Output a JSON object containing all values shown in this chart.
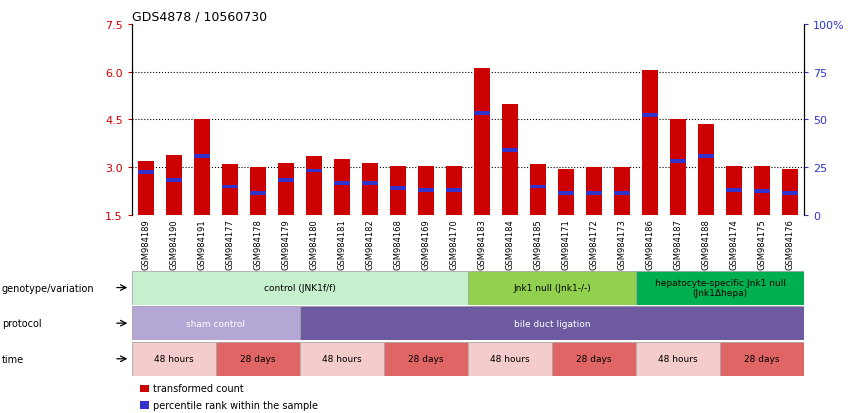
{
  "title": "GDS4878 / 10560730",
  "samples": [
    "GSM984189",
    "GSM984190",
    "GSM984191",
    "GSM984177",
    "GSM984178",
    "GSM984179",
    "GSM984180",
    "GSM984181",
    "GSM984182",
    "GSM984168",
    "GSM984169",
    "GSM984170",
    "GSM984183",
    "GSM984184",
    "GSM984185",
    "GSM984171",
    "GSM984172",
    "GSM984173",
    "GSM984186",
    "GSM984187",
    "GSM984188",
    "GSM984174",
    "GSM984175",
    "GSM984176"
  ],
  "transformed_counts": [
    3.2,
    3.4,
    4.5,
    3.1,
    3.0,
    3.15,
    3.35,
    3.25,
    3.15,
    3.05,
    3.05,
    3.05,
    6.1,
    5.0,
    3.1,
    2.95,
    3.0,
    3.0,
    6.05,
    4.5,
    4.35,
    3.05,
    3.05,
    2.95
  ],
  "percentile_ranks": [
    2.85,
    2.6,
    3.35,
    2.4,
    2.2,
    2.6,
    2.9,
    2.5,
    2.5,
    2.35,
    2.3,
    2.3,
    4.7,
    3.55,
    2.4,
    2.2,
    2.2,
    2.2,
    4.65,
    3.2,
    3.35,
    2.3,
    2.25,
    2.2
  ],
  "bar_color": "#cc0000",
  "percentile_color": "#3333cc",
  "ymin": 1.5,
  "ymax": 7.5,
  "yticks": [
    1.5,
    3.0,
    4.5,
    6.0,
    7.5
  ],
  "right_yticks": [
    0,
    25,
    50,
    75,
    100
  ],
  "right_ytick_labels": [
    "0",
    "25",
    "50",
    "75",
    "100%"
  ],
  "grid_lines": [
    3.0,
    4.5,
    6.0
  ],
  "genotype_groups": [
    {
      "label": "control (JNK1f/f)",
      "start": 0,
      "end": 12,
      "color": "#c6efce",
      "border": "#999999"
    },
    {
      "label": "Jnk1 null (Jnk1-/-)",
      "start": 12,
      "end": 18,
      "color": "#92d050",
      "border": "#999999"
    },
    {
      "label": "hepatocyte-specific Jnk1 null\n(Jnk1Δhepa)",
      "start": 18,
      "end": 24,
      "color": "#00b050",
      "border": "#999999"
    }
  ],
  "protocol_groups": [
    {
      "label": "sham control",
      "start": 0,
      "end": 6,
      "color": "#b4a7d6",
      "border": "#999999"
    },
    {
      "label": "bile duct ligation",
      "start": 6,
      "end": 24,
      "color": "#6d5aa1",
      "border": "#999999"
    }
  ],
  "time_groups": [
    {
      "label": "48 hours",
      "start": 0,
      "end": 3,
      "color": "#f4cccc",
      "border": "#999999"
    },
    {
      "label": "28 days",
      "start": 3,
      "end": 6,
      "color": "#e06666",
      "border": "#999999"
    },
    {
      "label": "48 hours",
      "start": 6,
      "end": 9,
      "color": "#f4cccc",
      "border": "#999999"
    },
    {
      "label": "28 days",
      "start": 9,
      "end": 12,
      "color": "#e06666",
      "border": "#999999"
    },
    {
      "label": "48 hours",
      "start": 12,
      "end": 15,
      "color": "#f4cccc",
      "border": "#999999"
    },
    {
      "label": "28 days",
      "start": 15,
      "end": 18,
      "color": "#e06666",
      "border": "#999999"
    },
    {
      "label": "48 hours",
      "start": 18,
      "end": 21,
      "color": "#f4cccc",
      "border": "#999999"
    },
    {
      "label": "28 days",
      "start": 21,
      "end": 24,
      "color": "#e06666",
      "border": "#999999"
    }
  ],
  "row_labels": [
    "genotype/variation",
    "protocol",
    "time"
  ],
  "legend_items": [
    {
      "label": "transformed count",
      "color": "#cc0000"
    },
    {
      "label": "percentile rank within the sample",
      "color": "#3333cc"
    }
  ]
}
